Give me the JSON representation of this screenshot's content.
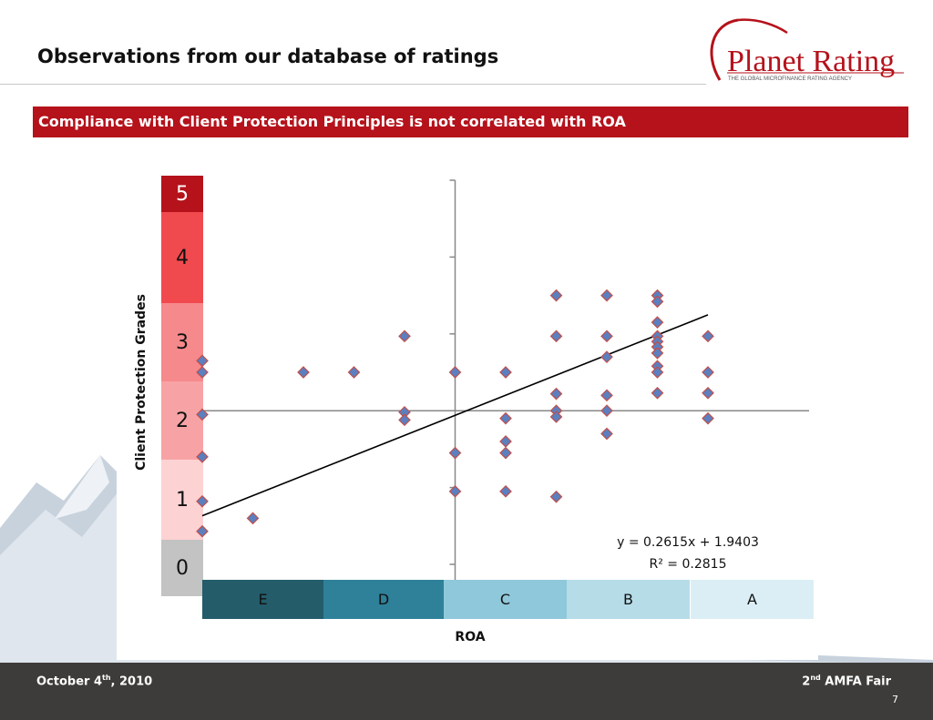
{
  "slide": {
    "title": "Observations from our database of ratings",
    "banner": "Compliance with Client Protection Principles is not correlated with ROA",
    "logo": {
      "name": "Planet Rating",
      "tagline": "THE GLOBAL MICROFINANCE RATING AGENCY",
      "color": "#b5121b"
    },
    "accent_color": "#b5121b"
  },
  "footer": {
    "date_main": "October 4",
    "date_sup": "th",
    "date_tail": ", 2010",
    "event_sup_prefix": "2",
    "event_sup": "nd",
    "event_tail": " AMFA Fair",
    "page": "7"
  },
  "chart_data": {
    "type": "scatter",
    "title": "",
    "xlabel": "ROA",
    "ylabel": "Client Protection Grades",
    "xlim": [
      -5,
      7
    ],
    "ylim": [
      0,
      5
    ],
    "grade_scale": [
      {
        "label": "5",
        "color": "#b5121b",
        "text_color": "#ffffff"
      },
      {
        "label": "4",
        "color": "#f04a4f",
        "text_color": "#111111"
      },
      {
        "label": "3",
        "color": "#f6898c",
        "text_color": "#111111"
      },
      {
        "label": "2",
        "color": "#f7a3a5",
        "text_color": "#111111"
      },
      {
        "label": "1",
        "color": "#fdd2d3",
        "text_color": "#111111"
      },
      {
        "label": "0",
        "color": "#c3c3c3",
        "text_color": "#111111"
      }
    ],
    "roa_scale": [
      {
        "label": "E",
        "color": "#245c6a"
      },
      {
        "label": "D",
        "color": "#2e8199"
      },
      {
        "label": "C",
        "color": "#8fc8da"
      },
      {
        "label": "B",
        "color": "#b6dce8"
      },
      {
        "label": "A",
        "color": "#dbeef5"
      }
    ],
    "points": [
      {
        "x": -5,
        "y": 2.65
      },
      {
        "x": -5,
        "y": 2.5
      },
      {
        "x": -5,
        "y": 1.95
      },
      {
        "x": -5,
        "y": 1.4
      },
      {
        "x": -5,
        "y": 0.82
      },
      {
        "x": -5,
        "y": 0.43
      },
      {
        "x": -4,
        "y": 0.6
      },
      {
        "x": -3,
        "y": 2.5
      },
      {
        "x": -2,
        "y": 2.5
      },
      {
        "x": -1,
        "y": 2.97
      },
      {
        "x": -1,
        "y": 1.98
      },
      {
        "x": -1,
        "y": 1.88
      },
      {
        "x": 0,
        "y": 2.5
      },
      {
        "x": 0,
        "y": 1.45
      },
      {
        "x": 0,
        "y": 0.95
      },
      {
        "x": 1,
        "y": 2.5
      },
      {
        "x": 1,
        "y": 1.9
      },
      {
        "x": 1,
        "y": 1.6
      },
      {
        "x": 1,
        "y": 1.45
      },
      {
        "x": 1,
        "y": 0.95
      },
      {
        "x": 2,
        "y": 3.5
      },
      {
        "x": 2,
        "y": 2.97
      },
      {
        "x": 2,
        "y": 2.22
      },
      {
        "x": 2,
        "y": 2
      },
      {
        "x": 2,
        "y": 1.92
      },
      {
        "x": 2,
        "y": 0.88
      },
      {
        "x": 3,
        "y": 3.5
      },
      {
        "x": 3,
        "y": 2.97
      },
      {
        "x": 3,
        "y": 2.7
      },
      {
        "x": 3,
        "y": 2.2
      },
      {
        "x": 3,
        "y": 2
      },
      {
        "x": 3,
        "y": 1.7
      },
      {
        "x": 4,
        "y": 3.5
      },
      {
        "x": 4,
        "y": 3.42
      },
      {
        "x": 4,
        "y": 3.15
      },
      {
        "x": 4,
        "y": 2.97
      },
      {
        "x": 4,
        "y": 2.9
      },
      {
        "x": 4,
        "y": 2.83
      },
      {
        "x": 4,
        "y": 2.75
      },
      {
        "x": 4,
        "y": 2.58
      },
      {
        "x": 4,
        "y": 2.5
      },
      {
        "x": 4,
        "y": 2.23
      },
      {
        "x": 5,
        "y": 2.97
      },
      {
        "x": 5,
        "y": 2.5
      },
      {
        "x": 5,
        "y": 2.23
      },
      {
        "x": 5,
        "y": 1.9
      }
    ],
    "trendline": {
      "slope": 0.2615,
      "intercept": 1.9403,
      "x_range": [
        -5,
        5
      ]
    },
    "equation": "y = 0.2615x + 1.9403",
    "r_squared": "R² = 0.2815",
    "axes_cross": {
      "x": 0,
      "y": 2
    },
    "marker_color": "#5b7fbf",
    "marker_edge": "#c0504d"
  }
}
